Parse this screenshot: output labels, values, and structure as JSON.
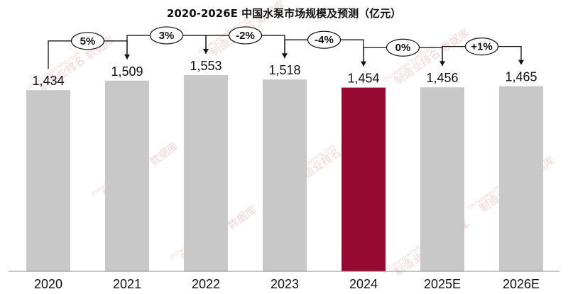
{
  "chart_data": {
    "type": "bar",
    "title": "2020-2026E 中国水泵市场规模及预测（亿元）",
    "categories": [
      "2020",
      "2021",
      "2022",
      "2023",
      "2024",
      "2025E",
      "2026E"
    ],
    "values": [
      1434,
      1509,
      1553,
      1518,
      1454,
      1456,
      1465
    ],
    "value_labels": [
      "1,434",
      "1,509",
      "1,553",
      "1,518",
      "1,454",
      "1,456",
      "1,465"
    ],
    "growth_labels": [
      "5%",
      "3%",
      "-2%",
      "-4%",
      "0%",
      "+1%"
    ],
    "highlight_index": 4,
    "ylim": [
      0,
      1600
    ],
    "grid": false,
    "colors": {
      "bar": "#c8c8c8",
      "highlight": "#970a34",
      "axis": "#888888"
    }
  },
  "watermark": {
    "text": "制造业排名 数据库",
    "url": "zhizaoyepaiming.com"
  }
}
